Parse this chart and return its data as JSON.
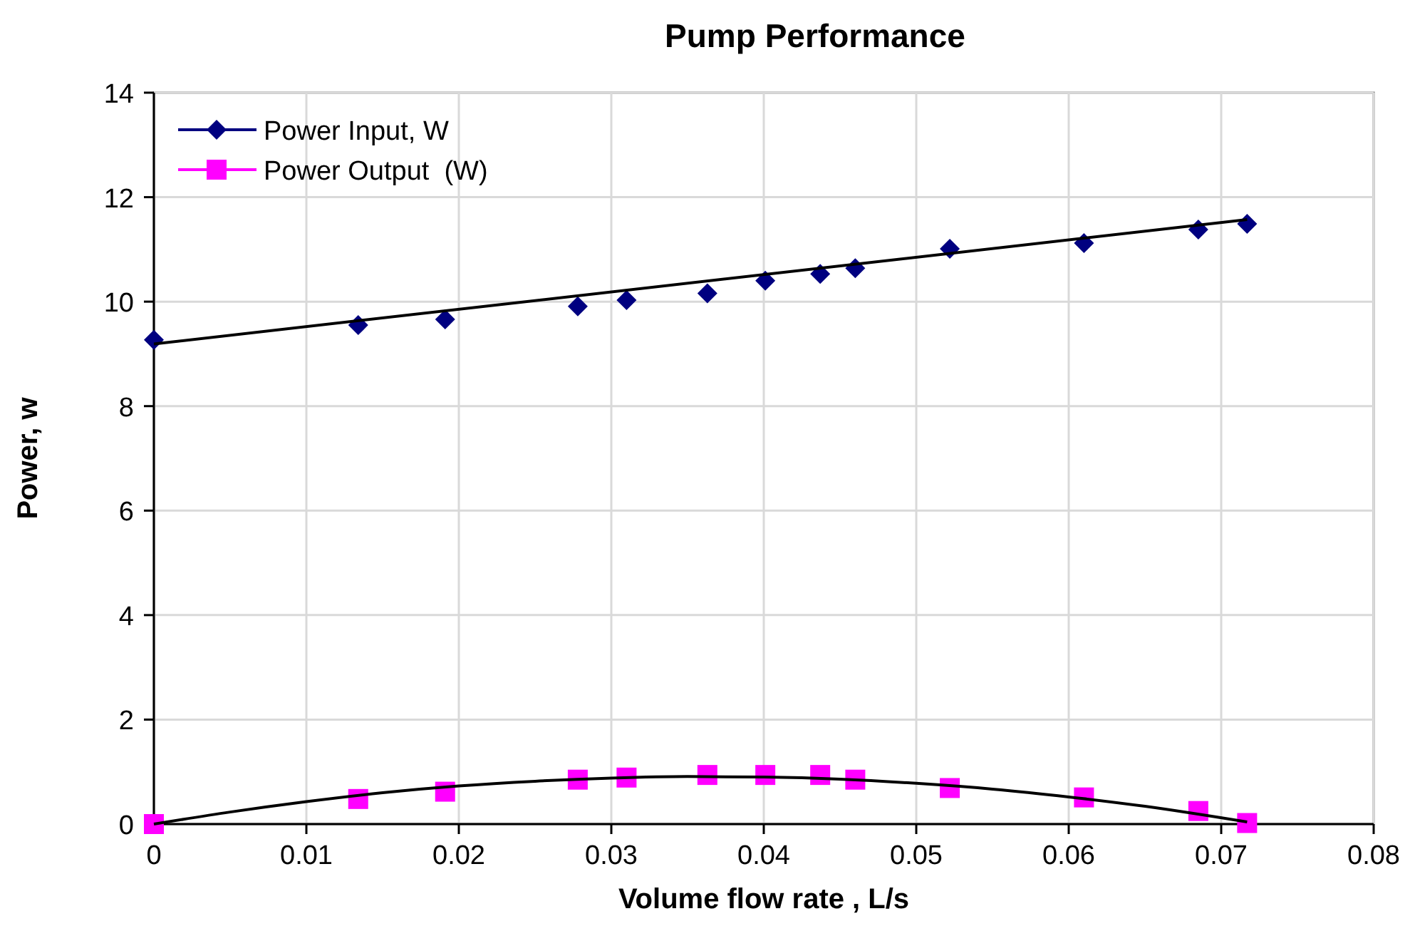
{
  "chart_data": {
    "type": "scatter",
    "title": "Pump Performance",
    "xlabel": "Volume flow rate , L/s",
    "ylabel": "Power, w",
    "xlim": [
      0,
      0.08
    ],
    "xticks": [
      0,
      0.01,
      0.02,
      0.03,
      0.04,
      0.05,
      0.06,
      0.07,
      0.08
    ],
    "ylim": [
      0,
      14
    ],
    "yticks": [
      0,
      2,
      4,
      6,
      8,
      10,
      12,
      14
    ],
    "grid": true,
    "legend": "top left",
    "x": [
      0,
      0.0134,
      0.0191,
      0.0278,
      0.031,
      0.0363,
      0.0401,
      0.0437,
      0.046,
      0.0522,
      0.061,
      0.0685,
      0.0717
    ],
    "series": [
      {
        "name": "Power Input, W",
        "color": "#000080",
        "marker": "diamond",
        "values": [
          9.27,
          9.55,
          9.66,
          9.91,
          10.03,
          10.16,
          10.4,
          10.53,
          10.64,
          11.01,
          11.12,
          11.38,
          11.49
        ]
      },
      {
        "name": "Power Output  (W)",
        "color": "#ff00ff",
        "marker": "square",
        "values": [
          0,
          0.48,
          0.62,
          0.85,
          0.89,
          0.94,
          0.94,
          0.94,
          0.85,
          0.69,
          0.51,
          0.25,
          0.02
        ]
      },
      {
        "type": "line",
        "color": "#000000",
        "marker": "none",
        "x": [
          0,
          0.0717
        ],
        "values": [
          9.19,
          11.57
        ]
      },
      {
        "type": "line",
        "color": "#000000",
        "marker": "none",
        "x": [
          0,
          0.005,
          0.01,
          0.015,
          0.02,
          0.025,
          0.03,
          0.035,
          0.04,
          0.045,
          0.05,
          0.055,
          0.06,
          0.065,
          0.0717
        ],
        "values": [
          0,
          0.23,
          0.43,
          0.6,
          0.73,
          0.82,
          0.88,
          0.91,
          0.9,
          0.86,
          0.78,
          0.67,
          0.52,
          0.34,
          0.04
        ]
      }
    ]
  }
}
